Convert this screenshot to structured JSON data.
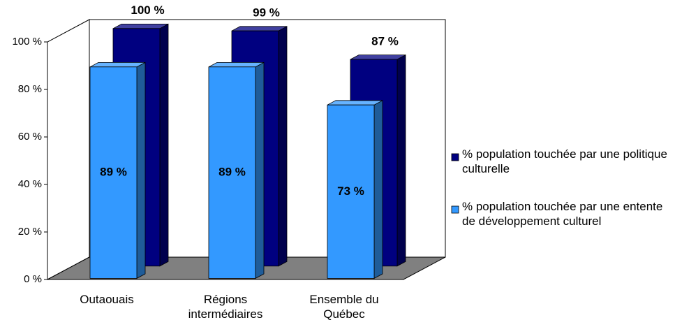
{
  "chart_data": {
    "type": "bar3d",
    "categories": [
      "Outaouais",
      "Régions intermédiaires",
      "Ensemble du Québec"
    ],
    "series": [
      {
        "name": "% population touchée par une politique culturelle",
        "color": "#000080",
        "values": [
          100,
          99,
          87
        ],
        "value_labels": [
          "100 %",
          "99 %",
          "87 %"
        ]
      },
      {
        "name": "% population touchée par une entente de développement culturel",
        "color": "#3399ff",
        "values": [
          89,
          89,
          73
        ],
        "value_labels": [
          "89 %",
          "89 %",
          "73 %"
        ]
      }
    ],
    "ylim": [
      0,
      100
    ],
    "yticks": [
      {
        "value": 0,
        "label": "0 %"
      },
      {
        "value": 20,
        "label": "20 %"
      },
      {
        "value": 40,
        "label": "40 %"
      },
      {
        "value": 60,
        "label": "60 %"
      },
      {
        "value": 80,
        "label": "80 %"
      },
      {
        "value": 100,
        "label": "100 %"
      }
    ],
    "legend": "right"
  }
}
